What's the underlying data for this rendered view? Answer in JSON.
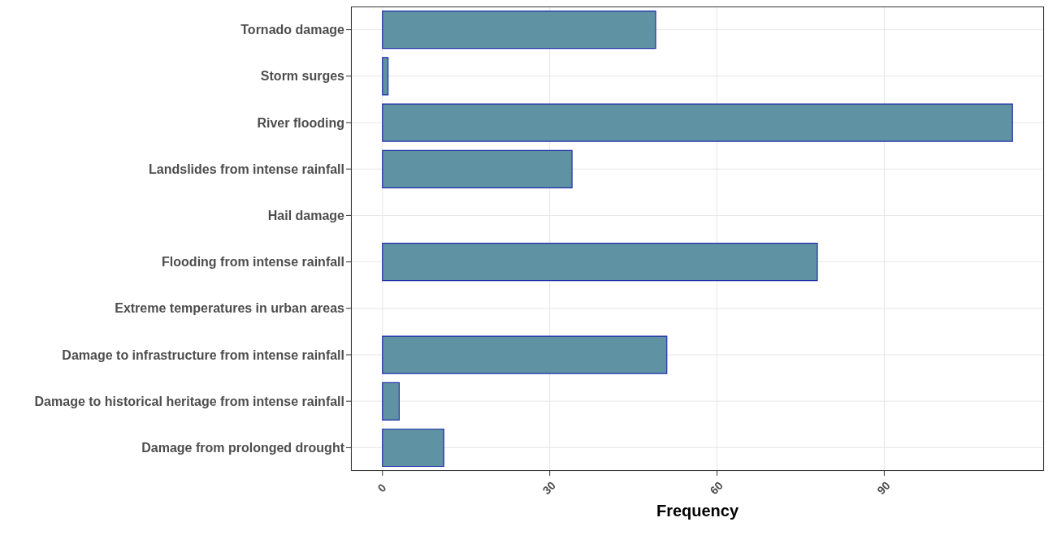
{
  "chart_data": {
    "type": "bar",
    "orientation": "horizontal",
    "xlabel": "Frequency",
    "categories": [
      "Tornado damage",
      "Storm surges",
      "River flooding",
      "Landslides from intense rainfall",
      "Hail damage",
      "Flooding from intense rainfall",
      "Extreme temperatures in urban areas",
      "Damage to infrastructure from intense rainfall",
      "Damage to historical heritage from intense rainfall",
      "Damage from prolonged drought"
    ],
    "values": [
      49,
      1,
      113,
      34,
      0,
      78,
      0,
      51,
      3,
      11
    ],
    "color": "#5f93a3",
    "xlim": [
      -5.65,
      118.65
    ],
    "xticks": [
      0,
      30,
      60,
      90
    ],
    "grid": true
  }
}
